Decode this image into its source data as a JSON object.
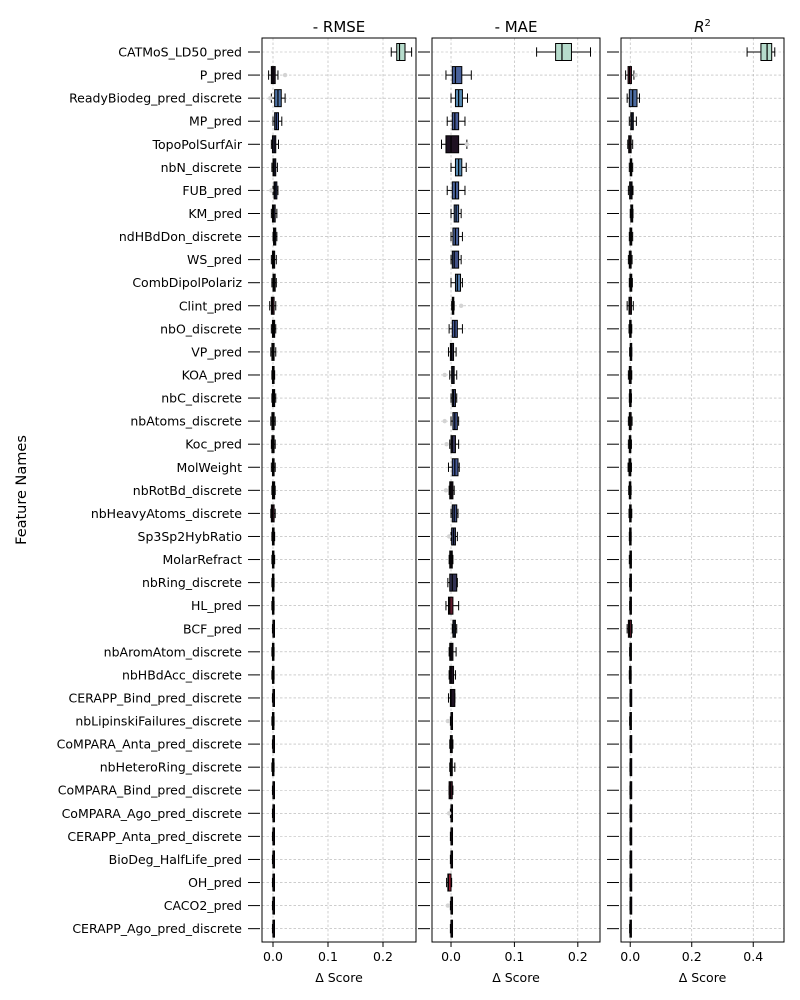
{
  "chart_data": {
    "type": "box",
    "ylabel": "Feature Names",
    "features": [
      "CATMoS_LD50_pred",
      "P_pred",
      "ReadyBiodeg_pred_discrete",
      "MP_pred",
      "TopoPolSurfAir",
      "nbN_discrete",
      "FUB_pred",
      "KM_pred",
      "ndHBdDon_discrete",
      "WS_pred",
      "CombDipolPolariz",
      "Clint_pred",
      "nbO_discrete",
      "VP_pred",
      "KOA_pred",
      "nbC_discrete",
      "nbAtoms_discrete",
      "Koc_pred",
      "MolWeight",
      "nbRotBd_discrete",
      "nbHeavyAtoms_discrete",
      "Sp3Sp2HybRatio",
      "MolarRefract",
      "nbRing_discrete",
      "HL_pred",
      "BCF_pred",
      "nbAromAtom_discrete",
      "nbHBdAcc_discrete",
      "CERAPP_Bind_pred_discrete",
      "nbLipinskiFailures_discrete",
      "CoMPARA_Anta_pred_discrete",
      "nbHeteroRing_discrete",
      "CoMPARA_Bind_pred_discrete",
      "CoMPARA_Ago_pred_discrete",
      "CERAPP_Anta_pred_discrete",
      "BioDeg_HalfLife_pred",
      "OH_pred",
      "CACO2_pred",
      "CERAPP_Ago_pred_discrete"
    ],
    "panels": [
      {
        "title": "- RMSE",
        "xlabel": "Δ Score",
        "xlim": [
          -0.02,
          0.26
        ],
        "xticks": [
          0.0,
          0.1,
          0.2
        ],
        "xtick_labels": [
          "0.0",
          "0.1",
          "0.2"
        ],
        "boxes": [
          [
            0.215,
            0.225,
            0.23,
            0.24,
            0.252
          ],
          [
            -0.008,
            -0.003,
            0.0,
            0.004,
            0.009
          ],
          [
            -0.003,
            0.003,
            0.009,
            0.015,
            0.022
          ],
          [
            0.0,
            0.003,
            0.006,
            0.01,
            0.016
          ],
          [
            -0.003,
            -0.001,
            0.002,
            0.005,
            0.01
          ],
          [
            -0.002,
            0.0,
            0.002,
            0.005,
            0.008
          ],
          [
            0.0,
            0.002,
            0.004,
            0.007,
            0.009
          ],
          [
            -0.003,
            -0.001,
            0.001,
            0.004,
            0.007
          ],
          [
            0.0,
            0.001,
            0.003,
            0.005,
            0.007
          ],
          [
            -0.003,
            -0.001,
            0.001,
            0.003,
            0.006
          ],
          [
            -0.002,
            0.0,
            0.002,
            0.004,
            0.006
          ],
          [
            -0.006,
            -0.003,
            -0.001,
            0.002,
            0.005
          ],
          [
            -0.003,
            -0.001,
            0.001,
            0.003,
            0.005
          ],
          [
            -0.004,
            -0.002,
            0.0,
            0.002,
            0.005
          ],
          [
            -0.002,
            -0.001,
            0.0,
            0.002,
            0.003
          ],
          [
            -0.002,
            -0.001,
            0.001,
            0.003,
            0.005
          ],
          [
            -0.004,
            -0.002,
            0.0,
            0.002,
            0.004
          ],
          [
            -0.003,
            -0.002,
            0.0,
            0.002,
            0.004
          ],
          [
            -0.003,
            -0.001,
            0.0,
            0.002,
            0.004
          ],
          [
            -0.002,
            -0.001,
            0.001,
            0.003,
            0.004
          ],
          [
            -0.004,
            -0.003,
            -0.001,
            0.002,
            0.004
          ],
          [
            -0.002,
            -0.001,
            0.0,
            0.002,
            0.003
          ],
          [
            -0.002,
            -0.001,
            0.0,
            0.001,
            0.003
          ],
          [
            -0.002,
            -0.001,
            0.0,
            0.001,
            0.002
          ],
          [
            -0.002,
            -0.001,
            0.0,
            0.001,
            0.002
          ],
          [
            -0.001,
            0.0,
            0.0,
            0.001,
            0.002
          ],
          [
            -0.002,
            -0.001,
            0.0,
            0.001,
            0.002
          ],
          [
            -0.002,
            -0.001,
            0.0,
            0.001,
            0.002
          ],
          [
            -0.001,
            0.0,
            0.0,
            0.0,
            0.001
          ],
          [
            -0.002,
            -0.001,
            0.0,
            0.001,
            0.002
          ],
          [
            -0.001,
            0.0,
            0.0,
            0.0,
            0.001
          ],
          [
            -0.002,
            -0.001,
            0.0,
            0.001,
            0.002
          ],
          [
            -0.001,
            0.0,
            0.0,
            0.0,
            0.001
          ],
          [
            -0.001,
            0.0,
            0.0,
            0.0,
            0.001
          ],
          [
            -0.001,
            0.0,
            0.0,
            0.0,
            0.001
          ],
          [
            -0.001,
            0.0,
            0.0,
            0.0,
            0.001
          ],
          [
            -0.001,
            0.0,
            0.0,
            0.0,
            0.001
          ],
          [
            -0.001,
            0.0,
            0.0,
            0.0,
            0.001
          ],
          [
            -0.001,
            0.0,
            0.0,
            0.0,
            0.001
          ]
        ],
        "outliers": [
          [
            1,
            0.022
          ],
          [
            2,
            -0.005
          ],
          [
            6,
            -0.003
          ]
        ]
      },
      {
        "title": "- MAE",
        "xlabel": "Δ Score",
        "xlim": [
          -0.03,
          0.235
        ],
        "xticks": [
          0.0,
          0.1,
          0.2
        ],
        "xtick_labels": [
          "0.0",
          "0.1",
          "0.2"
        ],
        "boxes": [
          [
            0.135,
            0.165,
            0.175,
            0.19,
            0.22
          ],
          [
            -0.008,
            0.002,
            0.007,
            0.017,
            0.032
          ],
          [
            0.0,
            0.007,
            0.012,
            0.018,
            0.026
          ],
          [
            -0.006,
            0.002,
            0.006,
            0.012,
            0.022
          ],
          [
            -0.015,
            -0.008,
            0.0,
            0.012,
            0.025
          ],
          [
            0.0,
            0.007,
            0.012,
            0.017,
            0.024
          ],
          [
            -0.006,
            0.002,
            0.007,
            0.012,
            0.022
          ],
          [
            0.0,
            0.005,
            0.008,
            0.012,
            0.016
          ],
          [
            0.0,
            0.003,
            0.007,
            0.012,
            0.018
          ],
          [
            0.0,
            0.002,
            0.005,
            0.012,
            0.016
          ],
          [
            0.0,
            0.007,
            0.01,
            0.015,
            0.018
          ],
          [
            0.001,
            0.002,
            0.003,
            0.004,
            0.005
          ],
          [
            -0.003,
            0.002,
            0.006,
            0.01,
            0.018
          ],
          [
            -0.004,
            -0.001,
            0.001,
            0.004,
            0.008
          ],
          [
            -0.002,
            0.001,
            0.003,
            0.005,
            0.009
          ],
          [
            0.0,
            0.002,
            0.004,
            0.007,
            0.009
          ],
          [
            0.0,
            0.003,
            0.006,
            0.01,
            0.012
          ],
          [
            -0.002,
            0.0,
            0.002,
            0.007,
            0.012
          ],
          [
            -0.004,
            0.002,
            0.006,
            0.011,
            0.013
          ],
          [
            -0.003,
            -0.002,
            0.0,
            0.003,
            0.005
          ],
          [
            0.0,
            0.002,
            0.005,
            0.009,
            0.011
          ],
          [
            0.0,
            0.001,
            0.004,
            0.007,
            0.01
          ],
          [
            -0.003,
            -0.002,
            0.0,
            0.002,
            0.003
          ],
          [
            -0.005,
            -0.002,
            0.002,
            0.009,
            0.01
          ],
          [
            -0.008,
            -0.004,
            -0.002,
            0.003,
            0.012
          ],
          [
            0.002,
            0.003,
            0.005,
            0.007,
            0.009
          ],
          [
            -0.003,
            -0.002,
            0.0,
            0.003,
            0.008
          ],
          [
            -0.003,
            -0.002,
            0.0,
            0.004,
            0.007
          ],
          [
            -0.004,
            -0.001,
            0.0,
            0.006,
            0.006
          ],
          [
            -0.001,
            0.0,
            0.0,
            0.001,
            0.002
          ],
          [
            -0.002,
            -0.001,
            0.0,
            0.002,
            0.003
          ],
          [
            -0.002,
            -0.001,
            0.0,
            0.002,
            0.006
          ],
          [
            -0.003,
            -0.003,
            -0.001,
            0.002,
            0.003
          ],
          [
            -0.001,
            0.0,
            0.0,
            0.0,
            0.001
          ],
          [
            -0.001,
            0.0,
            0.0,
            0.0,
            0.001
          ],
          [
            -0.001,
            0.0,
            0.0,
            0.0,
            0.001
          ],
          [
            -0.007,
            -0.005,
            -0.004,
            0.0,
            0.001
          ],
          [
            -0.001,
            0.0,
            0.0,
            0.0,
            0.001
          ],
          [
            -0.001,
            0.0,
            0.0,
            0.0,
            0.001
          ]
        ],
        "outliers": [
          [
            4,
            0.025
          ],
          [
            11,
            0.016
          ],
          [
            14,
            -0.01
          ],
          [
            16,
            -0.01
          ],
          [
            17,
            -0.007
          ],
          [
            19,
            -0.008
          ],
          [
            21,
            -0.003
          ],
          [
            29,
            -0.005
          ],
          [
            33,
            -0.003
          ],
          [
            37,
            -0.005
          ]
        ]
      },
      {
        "title": "R²",
        "xlabel": "Δ Score",
        "xlim": [
          -0.03,
          0.5
        ],
        "xticks": [
          0.0,
          0.2,
          0.4
        ],
        "xtick_labels": [
          "0.0",
          "0.2",
          "0.4"
        ],
        "boxes": [
          [
            0.38,
            0.425,
            0.445,
            0.46,
            0.47
          ],
          [
            -0.015,
            -0.007,
            -0.002,
            0.004,
            0.012
          ],
          [
            -0.01,
            -0.003,
            0.008,
            0.022,
            0.03
          ],
          [
            -0.003,
            0.002,
            0.006,
            0.01,
            0.02
          ],
          [
            -0.008,
            -0.005,
            -0.001,
            0.003,
            0.008
          ],
          [
            -0.003,
            0.0,
            0.002,
            0.005,
            0.008
          ],
          [
            -0.006,
            -0.002,
            0.002,
            0.006,
            0.009
          ],
          [
            0.0,
            0.002,
            0.005,
            0.008,
            0.009
          ],
          [
            -0.003,
            -0.001,
            0.002,
            0.005,
            0.008
          ],
          [
            -0.006,
            -0.003,
            0.0,
            0.003,
            0.006
          ],
          [
            -0.003,
            -0.001,
            0.002,
            0.005,
            0.007
          ],
          [
            -0.01,
            -0.004,
            -0.001,
            0.004,
            0.01
          ],
          [
            -0.004,
            -0.002,
            0.0,
            0.003,
            0.005
          ],
          [
            -0.002,
            0.0,
            0.001,
            0.003,
            0.005
          ],
          [
            -0.006,
            -0.003,
            -0.001,
            0.003,
            0.005
          ],
          [
            -0.003,
            -0.002,
            0.0,
            0.002,
            0.004
          ],
          [
            -0.006,
            -0.003,
            -0.001,
            0.003,
            0.006
          ],
          [
            -0.006,
            -0.003,
            -0.001,
            0.002,
            0.004
          ],
          [
            -0.007,
            -0.004,
            -0.001,
            0.002,
            0.004
          ],
          [
            -0.005,
            -0.003,
            -0.001,
            0.002,
            0.003
          ],
          [
            -0.004,
            -0.002,
            0.0,
            0.003,
            0.005
          ],
          [
            -0.003,
            -0.002,
            0.0,
            0.002,
            0.003
          ],
          [
            -0.003,
            -0.001,
            0.0,
            0.002,
            0.003
          ],
          [
            -0.002,
            -0.001,
            0.0,
            0.002,
            0.003
          ],
          [
            -0.002,
            -0.001,
            0.0,
            0.002,
            0.003
          ],
          [
            -0.01,
            -0.006,
            -0.002,
            0.004,
            0.006
          ],
          [
            -0.002,
            -0.001,
            0.0,
            0.001,
            0.002
          ],
          [
            -0.003,
            -0.002,
            0.0,
            0.002,
            0.003
          ],
          [
            -0.001,
            0.0,
            0.0,
            0.0,
            0.001
          ],
          [
            -0.002,
            -0.001,
            0.0,
            0.001,
            0.002
          ],
          [
            -0.001,
            0.0,
            0.0,
            0.0,
            0.001
          ],
          [
            -0.001,
            0.0,
            0.0,
            0.0,
            0.001
          ],
          [
            -0.001,
            0.0,
            0.0,
            0.0,
            0.001
          ],
          [
            -0.001,
            0.0,
            0.0,
            0.0,
            0.001
          ],
          [
            -0.001,
            0.0,
            0.0,
            0.0,
            0.001
          ],
          [
            -0.001,
            0.0,
            0.0,
            0.0,
            0.001
          ],
          [
            -0.001,
            0.0,
            0.0,
            0.0,
            0.001
          ],
          [
            -0.001,
            0.0,
            0.0,
            0.0,
            0.001
          ],
          [
            -0.002,
            -0.001,
            0.0,
            0.001,
            0.002
          ]
        ],
        "outliers": [
          [
            1,
            0.018
          ]
        ]
      }
    ],
    "grid": true,
    "colormap": "box colour follows the median Δ score: pale mint high, blue mid, near-black around zero, deep red/purple negative"
  }
}
